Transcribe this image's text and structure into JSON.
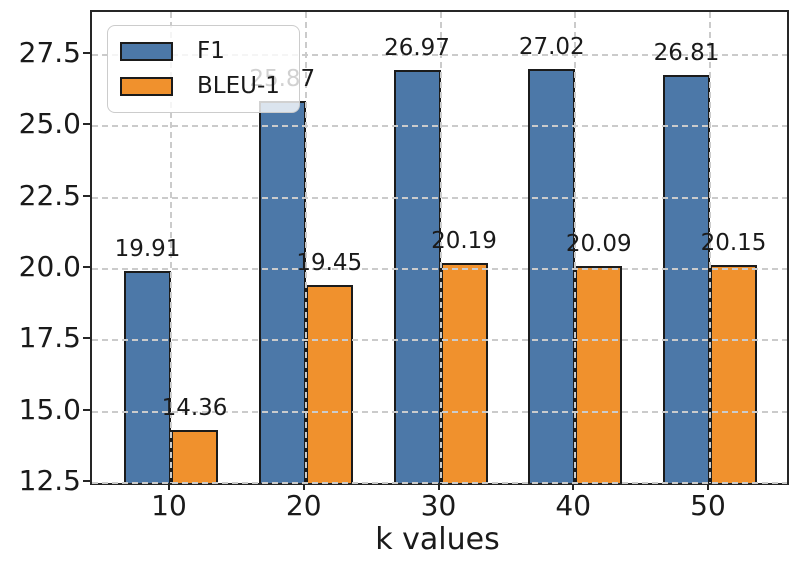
{
  "figure": {
    "background": "#ffffff",
    "spine_color": "#262626",
    "grid_color": "#cbcbcb",
    "text_color": "#1a1a1a"
  },
  "chart_data": {
    "type": "bar",
    "title": "",
    "xlabel": "k values",
    "ylabel": "",
    "categories": [
      "10",
      "20",
      "30",
      "40",
      "50"
    ],
    "series": [
      {
        "name": "F1",
        "color": "#4C78A8",
        "values": [
          19.91,
          25.87,
          26.97,
          27.02,
          26.81
        ],
        "labels": [
          "19.91",
          "25.87",
          "26.97",
          "27.02",
          "26.81"
        ]
      },
      {
        "name": "BLEU-1",
        "color": "#F0912D",
        "values": [
          14.36,
          19.45,
          20.19,
          20.09,
          20.15
        ],
        "labels": [
          "14.36",
          "19.45",
          "20.19",
          "20.09",
          "20.15"
        ]
      }
    ],
    "yticks": [
      "12.5",
      "15.0",
      "17.5",
      "20.0",
      "22.5",
      "25.0",
      "27.5"
    ],
    "ytick_values": [
      12.5,
      15.0,
      17.5,
      20.0,
      22.5,
      25.0,
      27.5
    ],
    "ylim": [
      12.5,
      29.0
    ],
    "grid": "dashed-both-axes-above-bars",
    "legend_position": "upper left"
  }
}
